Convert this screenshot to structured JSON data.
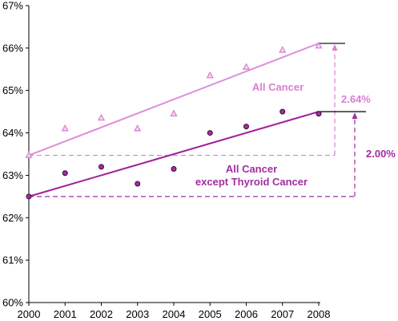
{
  "chart_data": {
    "type": "scatter",
    "x": [
      2000,
      2001,
      2002,
      2003,
      2004,
      2005,
      2006,
      2007,
      2008
    ],
    "ylim": [
      60,
      67
    ],
    "yticks": [
      60,
      61,
      62,
      63,
      64,
      65,
      66,
      67
    ],
    "ytick_labels": [
      "60%",
      "61%",
      "62%",
      "63%",
      "64%",
      "65%",
      "66%",
      "67%"
    ],
    "xtick_labels": [
      "2000",
      "2001",
      "2002",
      "2003",
      "2004",
      "2005",
      "2006",
      "2007",
      "2008"
    ],
    "grid": false,
    "series": [
      {
        "name": "All Cancer",
        "marker": "triangle",
        "color": "#d77fd0",
        "line_color": "#dd8fd8",
        "values": [
          63.47,
          64.1,
          64.35,
          64.1,
          64.45,
          65.35,
          65.55,
          65.95,
          66.05
        ],
        "trend": [
          63.47,
          66.11
        ]
      },
      {
        "name": "All Cancer except Thyroid Cancer",
        "marker": "circle",
        "color": "#a22ea0",
        "line_color": "#a0209a",
        "values": [
          62.5,
          63.05,
          63.2,
          62.8,
          63.15,
          64.0,
          64.15,
          64.5,
          64.45
        ],
        "trend": [
          62.5,
          64.5
        ]
      }
    ],
    "annotations": [
      {
        "series": 0,
        "text": "2.64%"
      },
      {
        "series": 1,
        "text": "2.00%"
      }
    ],
    "series_labels": [
      {
        "series": 0,
        "lines": [
          "All Cancer"
        ]
      },
      {
        "series": 1,
        "lines": [
          "All Cancer",
          "except Thyroid Cancer"
        ]
      }
    ]
  }
}
